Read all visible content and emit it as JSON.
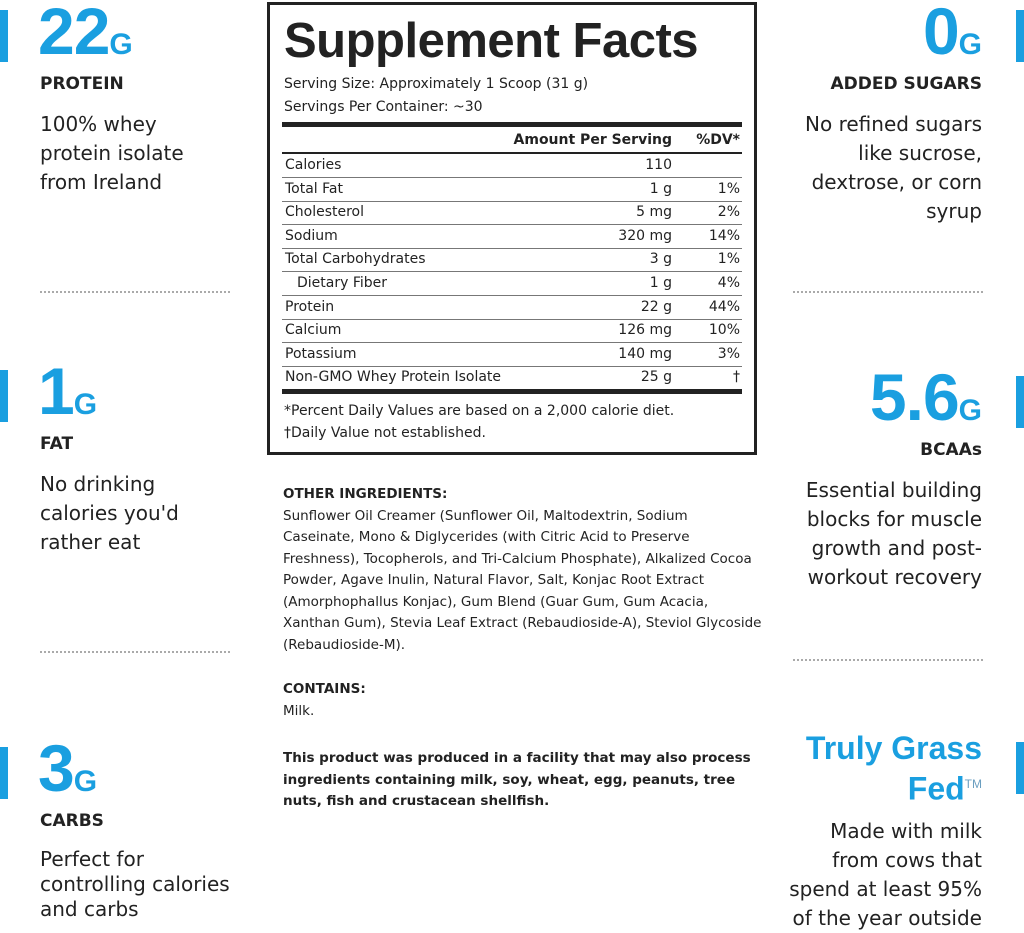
{
  "left_highlights": [
    {
      "value": "22",
      "unit": "G",
      "label": "PROTEIN",
      "description": "100% whey protein isolate from Ireland"
    },
    {
      "value": "1",
      "unit": "G",
      "label": "FAT",
      "description": "No drinking calories you'd rather eat"
    },
    {
      "value": "3",
      "unit": "G",
      "label": "CARBS",
      "description": "Perfect for controlling calories and carbs"
    }
  ],
  "right_highlights": [
    {
      "value": "0",
      "unit": "G",
      "label": "ADDED SUGARS",
      "description": "No refined sugars like sucrose, dextrose, or corn syrup"
    },
    {
      "value": "5.6",
      "unit": "G",
      "label": "BCAAs",
      "description": "Essential building blocks for muscle growth and post-workout recovery"
    }
  ],
  "grass_fed": {
    "title": "Truly Grass Fed",
    "mark": "TM",
    "description": "Made with milk from cows that spend at least 95% of the year outside"
  },
  "facts": {
    "title": "Supplement Facts",
    "serving_size": "Serving Size: Approximately 1 Scoop (31 g)",
    "servings": "Servings Per Container: ~30",
    "amount_header": "Amount Per Serving",
    "dv_header": "%DV*",
    "rows": [
      {
        "name": "Calories",
        "amount": "110"
      },
      {
        "name": "Total Fat",
        "amount": "1 g",
        "dv": "1%"
      },
      {
        "name": "Cholesterol",
        "amount": "5 mg",
        "dv": "2%"
      },
      {
        "name": "Sodium",
        "amount": "320 mg",
        "dv": "14%"
      },
      {
        "name": "Total Carbohydrates",
        "amount": "3 g",
        "dv": "1%"
      },
      {
        "name": "Dietary Fiber",
        "amount": "1 g",
        "dv": "4%"
      },
      {
        "name": "Protein",
        "amount": "22 g",
        "dv": "44%"
      },
      {
        "name": "Calcium",
        "amount": "126 mg",
        "dv": "10%"
      },
      {
        "name": "Potassium",
        "amount": "140 mg",
        "dv": "3%"
      },
      {
        "name": "Non-GMO Whey Protein Isolate",
        "amount": "25 g",
        "dv": "†"
      }
    ],
    "footnotes": [
      "*Percent Daily Values are based on a 2,000 calorie diet.",
      "†Daily Value not established."
    ]
  },
  "other_ingredients": {
    "heading": "OTHER INGREDIENTS:",
    "text": "Sunflower Oil Creamer (Sunflower Oil, Maltodextrin, Sodium Caseinate, Mono & Diglycerides (with Citric Acid to Preserve Freshness), Tocopherols, and Tri-Calcium Phosphate), Alkalized Cocoa Powder, Agave Inulin, Natural Flavor, Salt, Konjac Root Extract (Amorphophallus Konjac), Gum Blend (Guar Gum, Gum Acacia, Xanthan Gum), Stevia Leaf Extract (Rebaudioside-A), Steviol Glycoside (Rebaudioside-M)."
  },
  "contains": {
    "heading": "CONTAINS:",
    "text": "Milk."
  },
  "allergen_statement": "This product was produced in a facility that may also process ingredients containing milk, soy, wheat, egg, peanuts, tree nuts, fish and crustacean shellfish."
}
